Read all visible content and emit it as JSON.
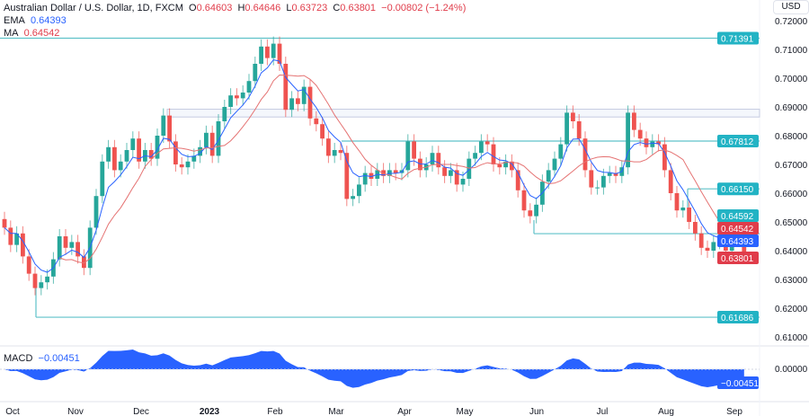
{
  "header": {
    "symbol": "Australian Dollar / U.S. Dollar, 1D, FXCM",
    "o_label": "O",
    "o": "0.64603",
    "h_label": "H",
    "h": "0.64646",
    "l_label": "L",
    "l": "0.63723",
    "c_label": "C",
    "c": "0.63801",
    "change": "−0.00802 (−1.24%)",
    "ema_label": "EMA",
    "ema": "0.64393",
    "ma_label": "MA",
    "ma": "0.64542",
    "currency": "USD"
  },
  "macd": {
    "label": "MACD",
    "value": "−0.00451",
    "zero_label": "0.00000",
    "tag": "−0.00451"
  },
  "colors": {
    "up": "#26a69a",
    "down": "#ef5350",
    "ema": "#2962ff",
    "ma": "#e57373",
    "level": "#5fc2c9",
    "macd": "#2962ff",
    "tag_level": "#22b3c4",
    "tag_red": "#e03c4a",
    "tag_blue": "#2962ff"
  },
  "chart_data": {
    "type": "candlestick",
    "ylim": [
      0.605,
      0.7215
    ],
    "y_ticks": [
      "0.72000",
      "0.71000",
      "0.70000",
      "0.69000",
      "0.68000",
      "0.67000",
      "0.66000",
      "0.65000",
      "0.64000",
      "0.63000",
      "0.62000",
      "0.61000"
    ],
    "x_ticks": [
      "Oct",
      "Nov",
      "Dec",
      "2023",
      "Feb",
      "Mar",
      "Apr",
      "May",
      "Jun",
      "Jul",
      "Aug",
      "Sep"
    ],
    "closes": [
      0.648,
      0.642,
      0.646,
      0.638,
      0.632,
      0.627,
      0.629,
      0.631,
      0.637,
      0.645,
      0.641,
      0.643,
      0.638,
      0.634,
      0.648,
      0.659,
      0.671,
      0.676,
      0.668,
      0.671,
      0.675,
      0.679,
      0.671,
      0.675,
      0.672,
      0.68,
      0.687,
      0.678,
      0.67,
      0.669,
      0.671,
      0.673,
      0.676,
      0.681,
      0.673,
      0.685,
      0.69,
      0.694,
      0.693,
      0.695,
      0.699,
      0.705,
      0.711,
      0.707,
      0.712,
      0.705,
      0.689,
      0.693,
      0.691,
      0.697,
      0.686,
      0.684,
      0.679,
      0.673,
      0.675,
      0.674,
      0.658,
      0.659,
      0.663,
      0.667,
      0.665,
      0.668,
      0.666,
      0.668,
      0.667,
      0.668,
      0.678,
      0.672,
      0.668,
      0.67,
      0.674,
      0.669,
      0.666,
      0.668,
      0.663,
      0.665,
      0.672,
      0.674,
      0.678,
      0.677,
      0.67,
      0.669,
      0.671,
      0.668,
      0.661,
      0.654,
      0.652,
      0.656,
      0.664,
      0.668,
      0.672,
      0.677,
      0.688,
      0.685,
      0.679,
      0.668,
      0.662,
      0.662,
      0.666,
      0.667,
      0.666,
      0.669,
      0.688,
      0.682,
      0.679,
      0.676,
      0.678,
      0.677,
      0.668,
      0.66,
      0.654,
      0.655,
      0.65,
      0.646,
      0.641,
      0.64,
      0.643,
      0.643,
      0.64,
      0.646,
      0.64603,
      0.63801
    ],
    "last_candle": {
      "open": 0.64603,
      "high": 0.64646,
      "low": 0.63723,
      "close": 0.63801
    },
    "levels": [
      {
        "value": 0.71391,
        "label": "0.71391"
      },
      {
        "value": 0.67812,
        "label": "0.67812"
      },
      {
        "value": 0.6615,
        "label": "0.66150"
      },
      {
        "value": 0.64592,
        "label": "0.64592"
      },
      {
        "value": 0.61686,
        "label": "0.61686"
      }
    ],
    "zone": [
      0.6865,
      0.6892
    ],
    "price_tags": [
      {
        "label": "0.64542",
        "value": 0.64542,
        "kind": "ma"
      },
      {
        "label": "0.64393",
        "value": 0.64393,
        "kind": "ema"
      },
      {
        "label": "0.63801",
        "value": 0.63801,
        "kind": "last"
      }
    ]
  }
}
